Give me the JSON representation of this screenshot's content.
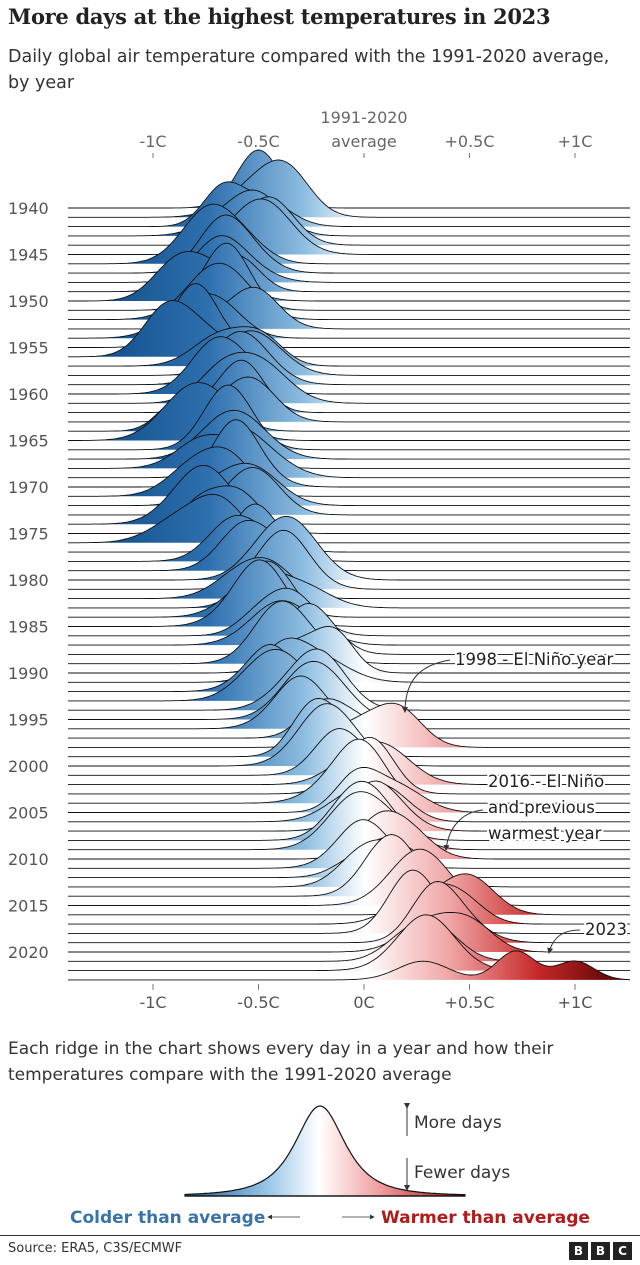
{
  "title": "More days at the highest temperatures in 2023",
  "subtitle": "Daily global air temperature compared with the 1991-2020 average, by year",
  "explain": "Each ridge in the chart shows every day in a year and how their temperatures compare with the 1991-2020 average",
  "source": "Source: ERA5, C3S/ECMWF",
  "logo": [
    "B",
    "B",
    "C"
  ],
  "colors": {
    "cold": "#08467f",
    "neutral": "#ffffff",
    "warm": "#6b0000",
    "cold_label": "#3a73a8",
    "warm_label": "#b01c1c"
  },
  "legend": {
    "more_days": "More days",
    "fewer_days": "Fewer days",
    "colder": "Colder than average",
    "warmer": "Warmer than average"
  },
  "chart_data": {
    "type": "ridgeline",
    "x_unit": "°C anomaly vs 1991-2020 average",
    "xlim": [
      -1.4,
      1.25
    ],
    "top_axis_labels": [
      {
        "value": -1,
        "label": "-1C"
      },
      {
        "value": -0.5,
        "label": "-0.5C"
      },
      {
        "value": 0,
        "label": "1991-2020 average"
      },
      {
        "value": 0.5,
        "label": "+0.5C"
      },
      {
        "value": 1,
        "label": "+1C"
      }
    ],
    "bottom_axis_labels": [
      {
        "value": -1,
        "label": "-1C"
      },
      {
        "value": -0.5,
        "label": "-0.5C"
      },
      {
        "value": 0,
        "label": "0C"
      },
      {
        "value": 0.5,
        "label": "+0.5C"
      },
      {
        "value": 1,
        "label": "+1C"
      }
    ],
    "year_labels": [
      1940,
      1945,
      1950,
      1955,
      1960,
      1965,
      1970,
      1975,
      1980,
      1985,
      1990,
      1995,
      2000,
      2005,
      2010,
      2015,
      2020
    ],
    "first_year": 1940,
    "yearly_mean_anomaly": [
      -0.5,
      -0.45,
      -0.55,
      -0.55,
      -0.45,
      -0.55,
      -0.65,
      -0.65,
      -0.65,
      -0.7,
      -0.8,
      -0.65,
      -0.65,
      -0.6,
      -0.75,
      -0.8,
      -0.85,
      -0.6,
      -0.55,
      -0.6,
      -0.62,
      -0.58,
      -0.6,
      -0.58,
      -0.78,
      -0.75,
      -0.65,
      -0.65,
      -0.68,
      -0.55,
      -0.6,
      -0.72,
      -0.62,
      -0.5,
      -0.75,
      -0.68,
      -0.78,
      -0.5,
      -0.58,
      -0.48,
      -0.42,
      -0.38,
      -0.5,
      -0.38,
      -0.5,
      -0.5,
      -0.42,
      -0.32,
      -0.28,
      -0.38,
      -0.25,
      -0.28,
      -0.45,
      -0.4,
      -0.3,
      -0.2,
      -0.3,
      -0.12,
      0.05,
      -0.2,
      -0.18,
      -0.05,
      0.0,
      0.02,
      -0.05,
      0.08,
      0.03,
      0.05,
      -0.05,
      0.05,
      0.12,
      0.0,
      0.05,
      0.1,
      0.15,
      0.28,
      0.42,
      0.35,
      0.25,
      0.38,
      0.4,
      0.25,
      0.3,
      0.6
    ],
    "annotations": [
      {
        "year": 1998,
        "text": [
          "1998 - El Niño year"
        ]
      },
      {
        "year": 2016,
        "text": [
          "2016 - El Niño",
          "and previous",
          "warmest year"
        ]
      },
      {
        "year": 2023,
        "text": [
          "2023"
        ]
      }
    ]
  }
}
